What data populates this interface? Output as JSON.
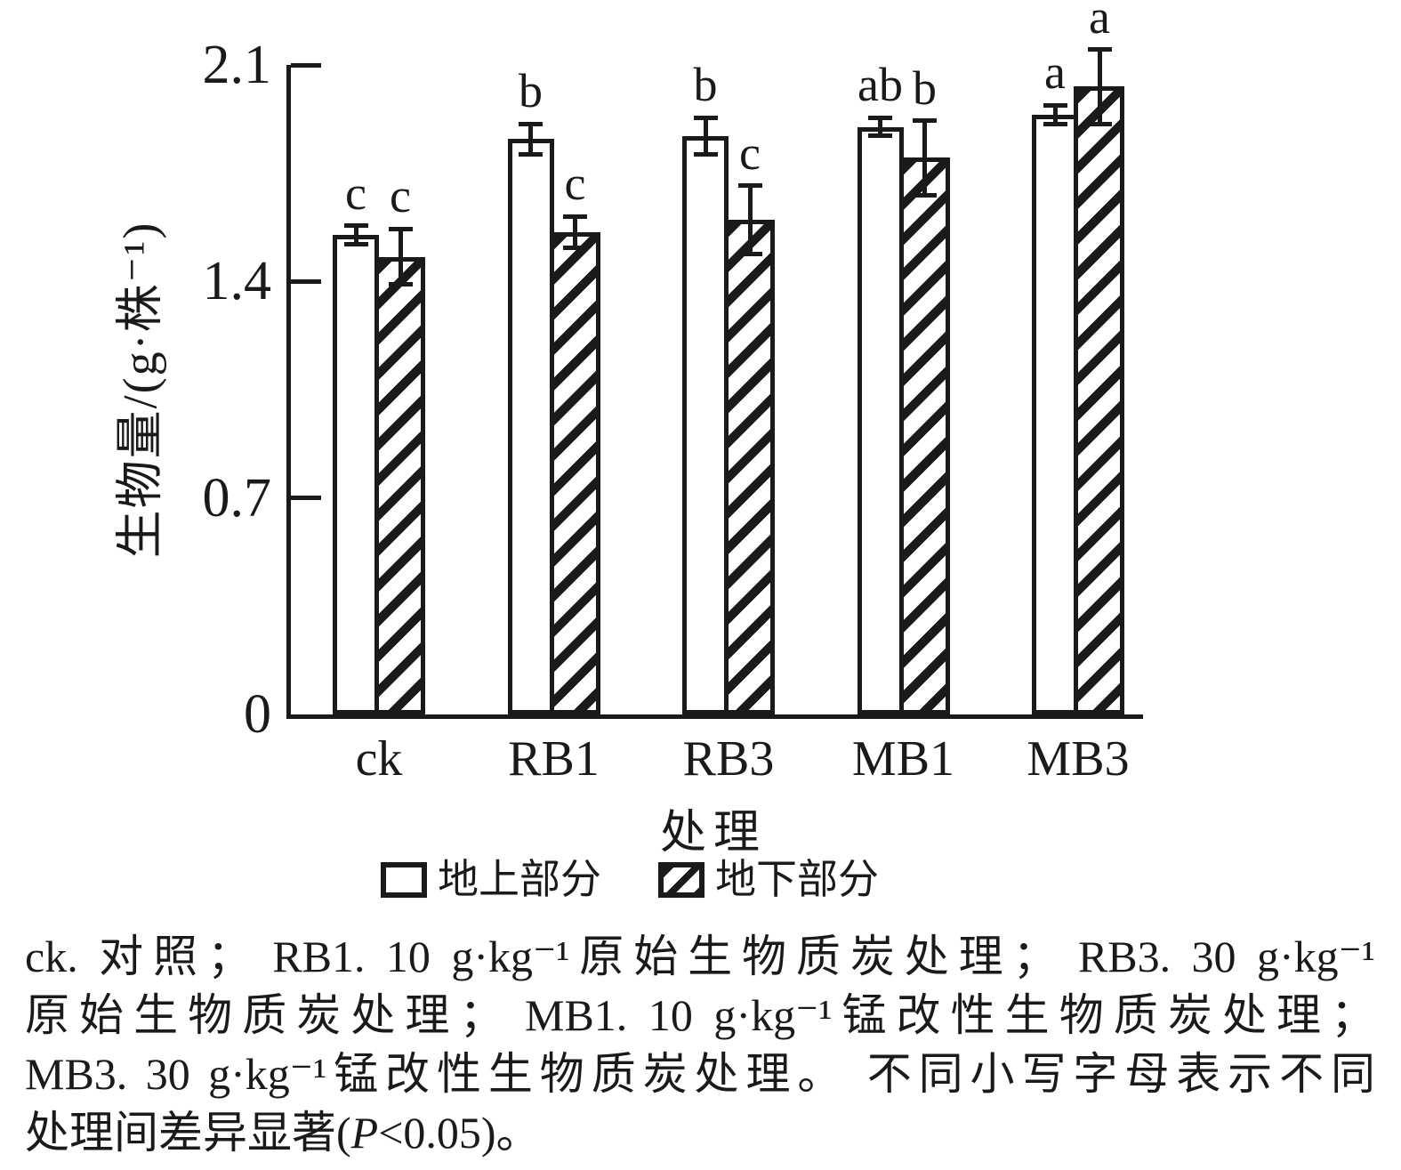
{
  "chart_data": {
    "type": "bar",
    "categories": [
      "ck",
      "RB1",
      "RB3",
      "MB1",
      "MB3"
    ],
    "series": [
      {
        "name": "地上部分",
        "pattern": "solid-white",
        "values": [
          1.55,
          1.86,
          1.87,
          1.9,
          1.94
        ],
        "errors": [
          0.03,
          0.05,
          0.06,
          0.03,
          0.03
        ],
        "sig_letters": [
          "c",
          "b",
          "b",
          "ab",
          "a"
        ]
      },
      {
        "name": "地下部分",
        "pattern": "diagonal-hatch",
        "values": [
          1.48,
          1.56,
          1.6,
          1.8,
          2.03
        ],
        "errors": [
          0.09,
          0.05,
          0.11,
          0.12,
          0.12
        ],
        "sig_letters": [
          "c",
          "c",
          "c",
          "b",
          "a"
        ]
      }
    ],
    "xlabel": "处理",
    "ylabel": "生物量/(g·株⁻¹)",
    "yticks": [
      "0",
      "0.7",
      "1.4",
      "2.1"
    ],
    "ylim": [
      0,
      2.1
    ],
    "grid": false,
    "legend_position": "bottom",
    "colors": {
      "foreground": "#1a1a1a",
      "background": "#ffffff"
    }
  },
  "caption": {
    "line1": "ck. 对照； RB1. 10 g·kg⁻¹原始生物质炭处理； RB3. 30 g·kg⁻¹",
    "line2": "原始生物质炭处理； MB1. 10 g·kg⁻¹锰改性生物质炭处理；",
    "line3": "MB3. 30 g·kg⁻¹锰改性生物质炭处理。 不同小写字母表示不同",
    "line4_pre": "处理间差异显著(",
    "line4_italic": "P",
    "line4_post": "<0.05)。"
  }
}
